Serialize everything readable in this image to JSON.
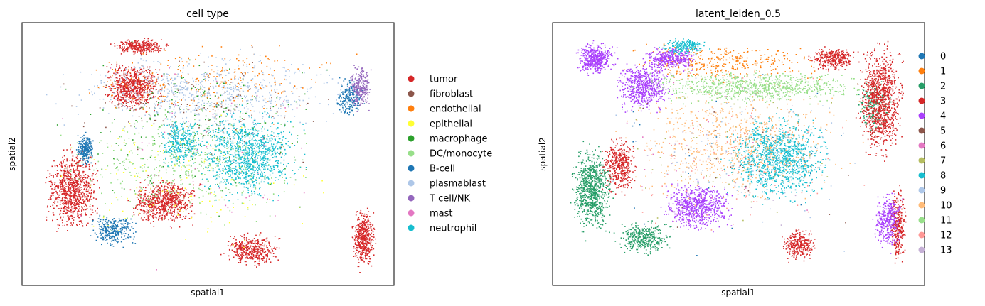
{
  "chart_data": [
    {
      "type": "scatter",
      "title": "cell type",
      "xlabel": "spatial1",
      "ylabel": "spatial2",
      "grid": false,
      "legend_placement": "right",
      "ticks": "none",
      "series": [
        {
          "name": "tumor",
          "color": "#d62728"
        },
        {
          "name": "fibroblast",
          "color": "#8c564b"
        },
        {
          "name": "endothelial",
          "color": "#ff7f0e"
        },
        {
          "name": "epithelial",
          "color": "#ffff33"
        },
        {
          "name": "macrophage",
          "color": "#2ca02c"
        },
        {
          "name": "DC/monocyte",
          "color": "#98df8a"
        },
        {
          "name": "B-cell",
          "color": "#1f77b4"
        },
        {
          "name": "plasmablast",
          "color": "#aec7e8"
        },
        {
          "name": "T cell/NK",
          "color": "#9467bd"
        },
        {
          "name": "mast",
          "color": "#e377c2"
        },
        {
          "name": "neutrophil",
          "color": "#17becf"
        }
      ]
    },
    {
      "type": "scatter",
      "title": "latent_leiden_0.5",
      "xlabel": "spatial1",
      "ylabel": "spatial2",
      "grid": false,
      "legend_placement": "right",
      "ticks": "none",
      "series": [
        {
          "name": "0",
          "color": "#1f77b4"
        },
        {
          "name": "1",
          "color": "#ff7f0e"
        },
        {
          "name": "2",
          "color": "#279e68"
        },
        {
          "name": "3",
          "color": "#d62728"
        },
        {
          "name": "4",
          "color": "#aa40fc"
        },
        {
          "name": "5",
          "color": "#8c564b"
        },
        {
          "name": "6",
          "color": "#e377c2"
        },
        {
          "name": "7",
          "color": "#b5bd61"
        },
        {
          "name": "8",
          "color": "#17becf"
        },
        {
          "name": "9",
          "color": "#aec7e8"
        },
        {
          "name": "10",
          "color": "#ffbb78"
        },
        {
          "name": "11",
          "color": "#98df8a"
        },
        {
          "name": "12",
          "color": "#ff9896"
        },
        {
          "name": "13",
          "color": "#c5b0d5"
        }
      ]
    }
  ]
}
